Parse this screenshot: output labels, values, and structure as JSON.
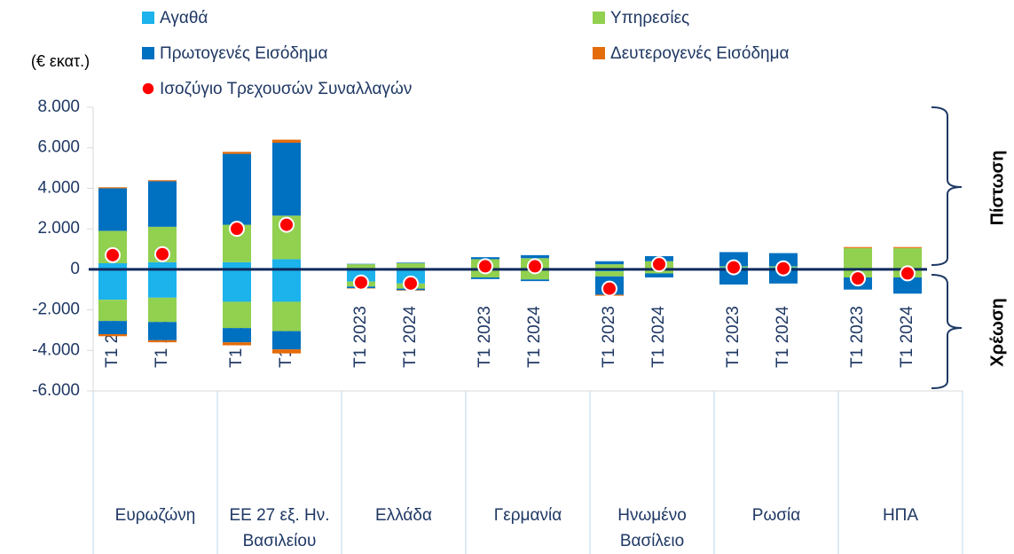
{
  "chart_data": {
    "type": "bar",
    "unit_label": "(€ εκατ.)",
    "credit_label": "Πίστωση",
    "debit_label": "Χρέωση",
    "categories": [
      "Τ1 2023",
      "Τ1 2024",
      "Τ1 2023",
      "Τ1 2024",
      "Τ1 2023",
      "Τ1 2024",
      "Τ1 2023",
      "Τ1 2024",
      "Τ1 2023",
      "Τ1 2024",
      "Τ1 2023",
      "Τ1 2024",
      "Τ1 2023",
      "Τ1 2024"
    ],
    "groups": [
      "Ευρωζώνη",
      "ΕΕ 27 εξ. Ην. Βασιλείου",
      "Ελλάδα",
      "Γερμανία",
      "Ηνωμένο Βασίλειο",
      "Ρωσία",
      "ΗΠΑ"
    ],
    "series": [
      {
        "name": "Αγαθά",
        "color": "#1cb2ec",
        "credit": [
          300,
          350,
          350,
          500,
          20,
          30,
          0,
          0,
          0,
          0,
          100,
          100,
          0,
          0
        ],
        "debit": [
          -1500,
          -1400,
          -1600,
          -1600,
          -600,
          -700,
          0,
          0,
          -100,
          0,
          0,
          0,
          0,
          0
        ]
      },
      {
        "name": "Υπηρεσίες",
        "color": "#92d050",
        "credit": [
          1600,
          1750,
          1850,
          2150,
          230,
          270,
          500,
          550,
          250,
          400,
          50,
          50,
          1050,
          1050
        ],
        "debit": [
          -1050,
          -1200,
          -1300,
          -1450,
          -250,
          -250,
          -400,
          -500,
          -250,
          -200,
          0,
          0,
          -400,
          -400
        ]
      },
      {
        "name": "Πρωτογενές Εισόδημα",
        "color": "#0070c0",
        "credit": [
          2100,
          2250,
          3500,
          3600,
          20,
          30,
          100,
          150,
          150,
          250,
          700,
          650,
          0,
          0
        ],
        "debit": [
          -650,
          -900,
          -700,
          -900,
          -80,
          -80,
          -80,
          -80,
          -900,
          -200,
          -750,
          -700,
          -600,
          -800
        ]
      },
      {
        "name": "Δευτερογενές Εισόδημα",
        "color": "#e46c0a",
        "credit": [
          50,
          50,
          100,
          150,
          0,
          0,
          0,
          0,
          0,
          0,
          0,
          0,
          50,
          50
        ],
        "debit": [
          -100,
          -100,
          -150,
          -200,
          -20,
          -20,
          0,
          0,
          -50,
          0,
          0,
          0,
          0,
          0
        ]
      }
    ],
    "balance": {
      "name": "Ισοζύγιο Τρεχουσών Συναλλαγών",
      "color": "#ff0000",
      "values": [
        700,
        750,
        2000,
        2200,
        -650,
        -700,
        150,
        150,
        -950,
        250,
        100,
        50,
        -450,
        -200
      ]
    },
    "ylim": [
      -6000,
      8000
    ],
    "yticks": [
      {
        "value": -6000,
        "label": "-6.000"
      },
      {
        "value": -4000,
        "label": "-4.000"
      },
      {
        "value": -2000,
        "label": "-2.000"
      },
      0,
      {
        "value": 2000,
        "label": "2.000"
      },
      {
        "value": 4000,
        "label": "4.000"
      },
      {
        "value": 6000,
        "label": "6.000"
      },
      {
        "value": 8000,
        "label": "8.000"
      }
    ]
  }
}
